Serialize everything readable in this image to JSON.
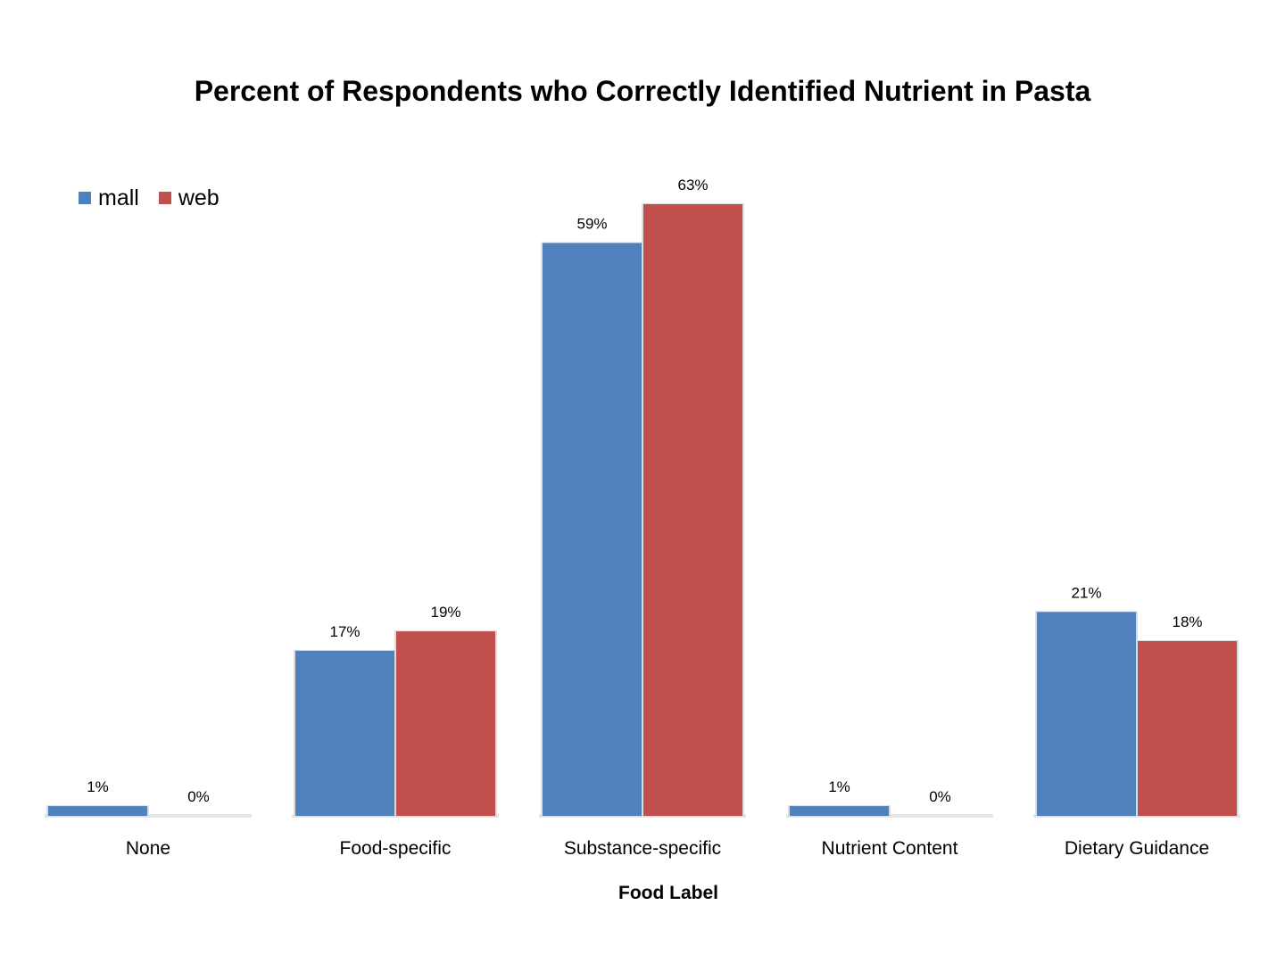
{
  "chart_data": {
    "type": "bar",
    "title": "Percent of Respondents who Correctly Identified Nutrient in Pasta",
    "xlabel": "Food Label",
    "ylabel": "",
    "ylim": [
      0,
      0.63
    ],
    "categories": [
      "None",
      "Food-specific",
      "Substance-specific",
      "Nutrient Content",
      "Dietary Guidance"
    ],
    "series": [
      {
        "name": "mall",
        "color": "#4f81bd",
        "values": [
          0.01,
          0.17,
          0.59,
          0.01,
          0.21
        ],
        "labels": [
          "1%",
          "17%",
          "59%",
          "1%",
          "21%"
        ]
      },
      {
        "name": "web",
        "color": "#c0504d",
        "values": [
          0.0,
          0.19,
          0.63,
          0.0,
          0.18
        ],
        "labels": [
          "0%",
          "19%",
          "63%",
          "0%",
          "18%"
        ]
      }
    ],
    "legend_position": "top-left",
    "grid": false,
    "data_labels": true
  }
}
